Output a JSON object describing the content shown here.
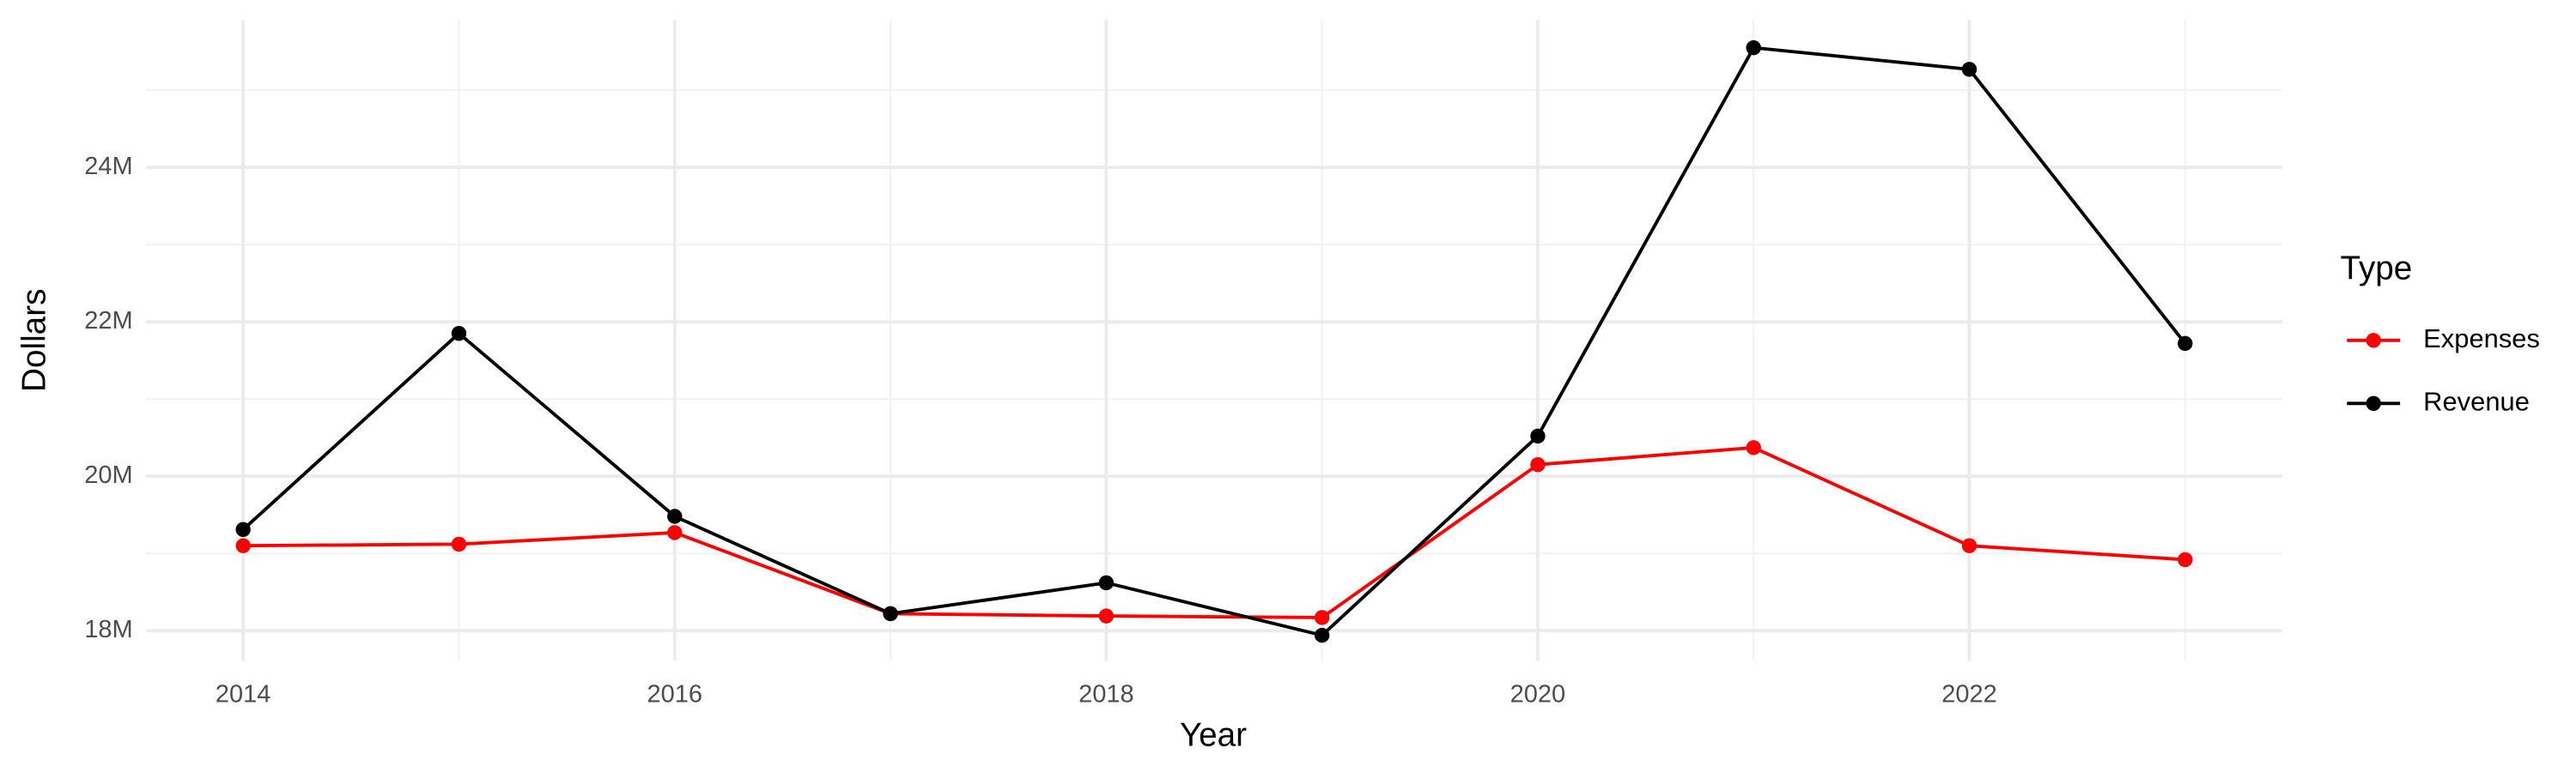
{
  "chart_data": {
    "type": "line",
    "x_label": "Year",
    "y_label": "Dollars",
    "legend_title": "Type",
    "legend_position": "right",
    "grid": true,
    "x": [
      2014,
      2015,
      2016,
      2017,
      2018,
      2019,
      2020,
      2021,
      2022,
      2023
    ],
    "xlim": [
      2013.55,
      2023.45
    ],
    "xticks": [
      2014,
      2016,
      2018,
      2020,
      2022
    ],
    "ylim": [
      17610000,
      25910000
    ],
    "yticks": [
      {
        "value": 18000000,
        "label": "18M"
      },
      {
        "value": 20000000,
        "label": "20M"
      },
      {
        "value": 22000000,
        "label": "22M"
      },
      {
        "value": 24000000,
        "label": "24M"
      }
    ],
    "series": [
      {
        "name": "Expenses",
        "color": "#ff0000",
        "values": [
          19100000,
          19120000,
          19270000,
          18220000,
          18190000,
          18170000,
          20150000,
          20370000,
          19100000,
          18920000
        ]
      },
      {
        "name": "Revenue",
        "color": "#000000",
        "values": [
          19310000,
          21850000,
          19480000,
          18220000,
          18620000,
          17940000,
          20520000,
          25550000,
          25270000,
          21720000
        ]
      }
    ]
  }
}
